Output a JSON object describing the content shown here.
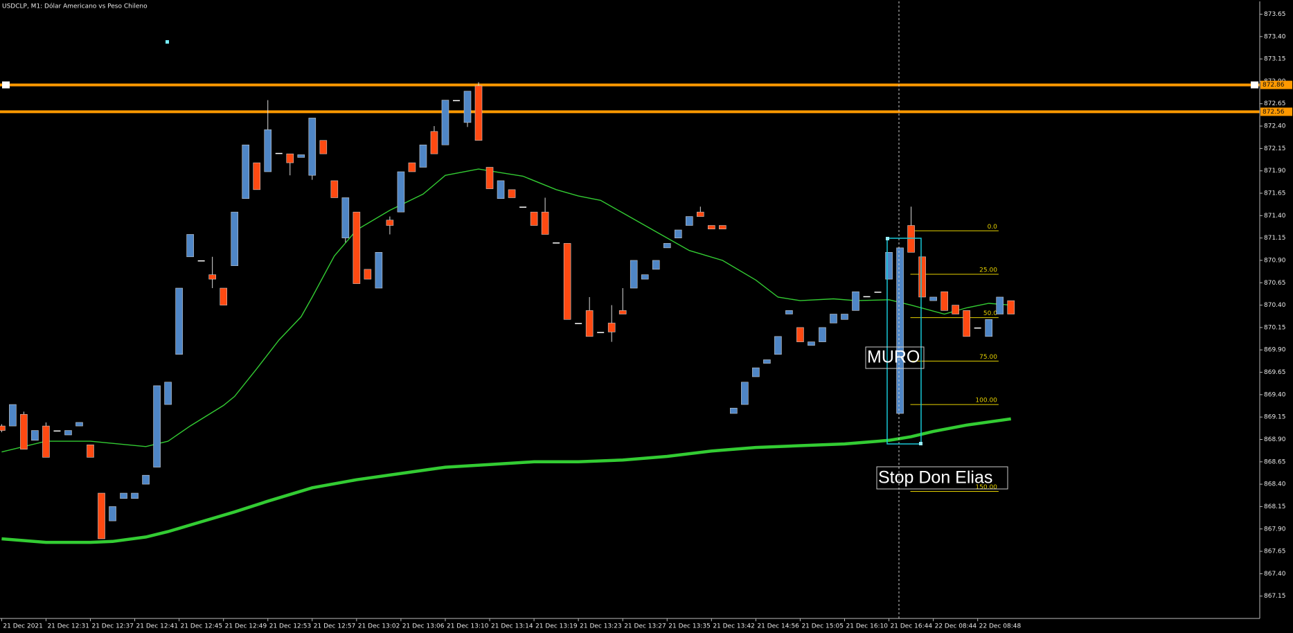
{
  "chart_data": {
    "type": "candlestick",
    "title": "USDCLP, M1:  Dólar Americano vs Peso Chileno",
    "categories": [
      "21 Dec 2021",
      null,
      null,
      null,
      "21 Dec 12:31",
      null,
      null,
      null,
      "21 Dec 12:37",
      null,
      null,
      null,
      "21 Dec 12:41",
      null,
      null,
      null,
      "21 Dec 12:45",
      null,
      null,
      null,
      "21 Dec 12:49",
      null,
      null,
      null,
      "21 Dec 12:53",
      null,
      null,
      null,
      "21 Dec 12:57",
      null,
      null,
      null,
      "21 Dec 13:02",
      null,
      null,
      null,
      "21 Dec 13:06",
      null,
      null,
      null,
      "21 Dec 13:10",
      null,
      null,
      null,
      "21 Dec 13:14",
      null,
      null,
      null,
      "21 Dec 13:19",
      null,
      null,
      null,
      "21 Dec 13:23",
      null,
      null,
      null,
      "21 Dec 13:27",
      null,
      null,
      null,
      "21 Dec 13:35",
      null,
      null,
      null,
      "21 Dec 13:42",
      null,
      null,
      null,
      "21 Dec 14:56",
      null,
      null,
      null,
      "21 Dec 15:05",
      null,
      null,
      null,
      "21 Dec 16:10",
      null,
      null,
      null,
      "21 Dec 16:44",
      null,
      null,
      null,
      "22 Dec 08:44",
      null,
      null,
      null,
      "22 Dec 08:48",
      null,
      null,
      null
    ],
    "open": [
      869.05,
      869.05,
      869.18,
      868.89,
      869.05,
      869.0,
      868.95,
      869.05,
      868.84,
      868.3,
      867.99,
      868.24,
      868.24,
      868.4,
      868.59,
      869.29,
      869.85,
      870.94,
      870.9,
      870.74,
      870.59,
      870.84,
      871.59,
      871.99,
      871.89,
      872.1,
      872.09,
      872.05,
      871.85,
      872.24,
      871.79,
      871.15,
      871.44,
      870.8,
      870.59,
      871.35,
      871.44,
      871.99,
      871.94,
      872.34,
      872.19,
      872.69,
      872.44,
      872.85,
      871.94,
      871.59,
      871.69,
      871.5,
      871.44,
      871.44,
      871.1,
      871.09,
      870.2,
      870.34,
      870.1,
      870.2,
      870.34,
      870.59,
      870.69,
      870.8,
      871.04,
      871.15,
      871.29,
      871.44,
      871.29,
      871.29,
      869.19,
      869.29,
      869.6,
      869.75,
      869.85,
      870.3,
      870.15,
      869.95,
      869.99,
      870.2,
      870.24,
      870.34,
      870.5,
      870.55,
      870.69,
      869.19,
      871.29,
      870.94,
      870.45,
      870.55,
      870.4,
      870.34,
      870.15,
      870.05,
      870.3,
      870.45
    ],
    "high": [
      869.07,
      869.29,
      869.21,
      869.0,
      869.09,
      869.0,
      869.0,
      869.09,
      868.84,
      868.3,
      868.15,
      868.3,
      868.3,
      868.5,
      869.5,
      869.54,
      870.59,
      871.19,
      870.9,
      870.94,
      870.59,
      871.44,
      872.19,
      871.99,
      872.69,
      872.1,
      872.09,
      872.08,
      872.49,
      872.24,
      871.79,
      871.6,
      871.44,
      870.8,
      870.99,
      871.39,
      871.89,
      871.99,
      872.19,
      872.4,
      872.69,
      872.69,
      872.79,
      872.89,
      871.94,
      871.79,
      871.69,
      871.5,
      871.44,
      871.6,
      871.1,
      871.09,
      870.2,
      870.49,
      870.1,
      870.4,
      870.59,
      870.9,
      870.74,
      870.9,
      871.09,
      871.24,
      871.39,
      871.5,
      871.29,
      871.29,
      869.25,
      869.54,
      869.7,
      869.79,
      870.05,
      870.34,
      870.15,
      869.99,
      870.15,
      870.3,
      870.3,
      870.55,
      870.5,
      870.55,
      870.99,
      871.04,
      871.5,
      870.94,
      870.49,
      870.55,
      870.4,
      870.34,
      870.15,
      870.24,
      870.49,
      870.45
    ],
    "low": [
      868.98,
      869.05,
      868.79,
      868.89,
      868.7,
      869.0,
      868.95,
      869.05,
      868.7,
      867.79,
      867.99,
      868.24,
      868.24,
      868.4,
      868.59,
      869.29,
      869.85,
      870.94,
      870.9,
      870.59,
      870.4,
      870.84,
      871.59,
      871.69,
      871.89,
      872.1,
      871.85,
      872.05,
      871.8,
      872.09,
      871.6,
      871.1,
      870.64,
      870.69,
      870.59,
      871.19,
      871.44,
      871.89,
      871.94,
      872.09,
      872.19,
      872.69,
      872.39,
      872.24,
      871.7,
      871.59,
      871.6,
      871.5,
      871.29,
      871.19,
      871.1,
      870.24,
      870.2,
      870.05,
      870.1,
      869.99,
      870.3,
      870.59,
      870.69,
      870.8,
      871.04,
      871.15,
      871.29,
      871.39,
      871.25,
      871.25,
      869.19,
      869.29,
      869.6,
      869.75,
      869.85,
      870.3,
      869.99,
      869.95,
      869.99,
      870.2,
      870.24,
      870.34,
      870.5,
      870.55,
      870.69,
      869.19,
      870.99,
      870.49,
      870.45,
      870.34,
      870.3,
      870.05,
      870.15,
      870.05,
      870.3,
      870.3
    ],
    "close": [
      869.0,
      869.29,
      868.79,
      869.0,
      868.7,
      869.0,
      869.0,
      869.09,
      868.7,
      867.79,
      868.15,
      868.3,
      868.3,
      868.5,
      869.5,
      869.54,
      870.59,
      871.19,
      870.9,
      870.69,
      870.4,
      871.44,
      872.19,
      871.69,
      872.36,
      872.1,
      871.99,
      872.08,
      872.49,
      872.09,
      871.6,
      871.6,
      870.64,
      870.69,
      870.99,
      871.29,
      871.89,
      871.89,
      872.19,
      872.09,
      872.69,
      872.69,
      872.79,
      872.24,
      871.7,
      871.79,
      871.6,
      871.5,
      871.29,
      871.19,
      871.1,
      870.24,
      870.2,
      870.05,
      870.1,
      870.1,
      870.3,
      870.9,
      870.74,
      870.9,
      871.09,
      871.24,
      871.39,
      871.39,
      871.25,
      871.25,
      869.25,
      869.54,
      869.7,
      869.79,
      870.05,
      870.34,
      869.99,
      869.99,
      870.15,
      870.3,
      870.3,
      870.55,
      870.5,
      870.55,
      870.99,
      871.04,
      870.99,
      870.49,
      870.49,
      870.34,
      870.3,
      870.05,
      870.15,
      870.24,
      870.49,
      870.3
    ],
    "up_color": "#4f86c6",
    "down_color": "#ff4a12",
    "doji_color": "#ffffff",
    "series": [
      {
        "color": "#33cc33",
        "x": [
          0,
          4,
          8,
          13,
          15,
          17,
          20,
          21,
          23,
          25,
          27,
          28,
          30,
          32,
          35,
          38,
          40,
          43,
          45,
          47,
          50,
          52,
          54,
          56,
          59,
          62,
          65,
          68,
          70,
          72,
          75,
          77,
          80,
          82,
          85,
          87,
          89,
          91
        ],
        "values": [
          868.76,
          868.88,
          868.88,
          868.82,
          868.88,
          869.05,
          869.28,
          869.38,
          869.69,
          870.01,
          870.27,
          870.49,
          870.95,
          871.24,
          871.46,
          871.64,
          871.85,
          871.92,
          871.88,
          871.84,
          871.69,
          871.62,
          871.57,
          871.43,
          871.22,
          871.01,
          870.9,
          870.68,
          870.49,
          870.45,
          870.47,
          870.45,
          870.46,
          870.4,
          870.3,
          870.37,
          870.42,
          870.4
        ]
      },
      {
        "color": "#33cc33",
        "x": [
          0,
          4,
          8,
          10,
          13,
          15,
          18,
          21,
          24,
          28,
          32,
          36,
          40,
          44,
          48,
          52,
          56,
          60,
          64,
          68,
          72,
          76,
          80,
          82,
          84,
          87,
          91
        ],
        "values": [
          867.79,
          867.75,
          867.75,
          867.76,
          867.81,
          867.87,
          867.98,
          868.09,
          868.21,
          868.36,
          868.45,
          868.52,
          868.59,
          868.62,
          868.65,
          868.65,
          868.67,
          868.71,
          868.77,
          868.81,
          868.83,
          868.85,
          868.89,
          868.93,
          868.99,
          869.06,
          869.13
        ]
      }
    ],
    "hlines": [
      {
        "value": 872.86,
        "color": "#ff9900"
      },
      {
        "value": 872.56,
        "color": "#ff9900"
      }
    ],
    "fibo": {
      "high": 871.23,
      "low": 869.29,
      "color": "#e6d200",
      "levels": [
        {
          "value": 0,
          "label": "0.0"
        },
        {
          "value": 25,
          "label": "25.00"
        },
        {
          "value": 50,
          "label": "50.0"
        },
        {
          "value": 75,
          "label": "75.00"
        },
        {
          "value": 100,
          "label": "100.00"
        },
        {
          "value": 150,
          "label": "150.00"
        }
      ]
    },
    "annotations": [
      {
        "text": "MURO"
      },
      {
        "text": "Stop Don Elias"
      }
    ],
    "ylim": [
      866.9,
      873.79
    ],
    "yticks": [
      873.65,
      {
        "value": 873.4,
        "label": "873.40"
      },
      873.15,
      {
        "value": 872.9,
        "label": "872.90"
      },
      872.65,
      {
        "value": 872.4,
        "label": "872.40"
      },
      872.15,
      {
        "value": 871.9,
        "label": "871.90"
      },
      871.65,
      {
        "value": 871.4,
        "label": "871.40"
      },
      871.15,
      {
        "value": 870.9,
        "label": "870.90"
      },
      870.65,
      {
        "value": 870.4,
        "label": "870.40"
      },
      870.15,
      {
        "value": 869.9,
        "label": "869.90"
      },
      869.65,
      {
        "value": 869.4,
        "label": "869.40"
      },
      869.15,
      {
        "value": 868.9,
        "label": "868.90"
      },
      868.65,
      {
        "value": 868.4,
        "label": "868.40"
      },
      868.15,
      {
        "value": 867.9,
        "label": "867.90"
      },
      867.65,
      {
        "value": 867.4,
        "label": "867.40"
      },
      867.15
    ]
  }
}
